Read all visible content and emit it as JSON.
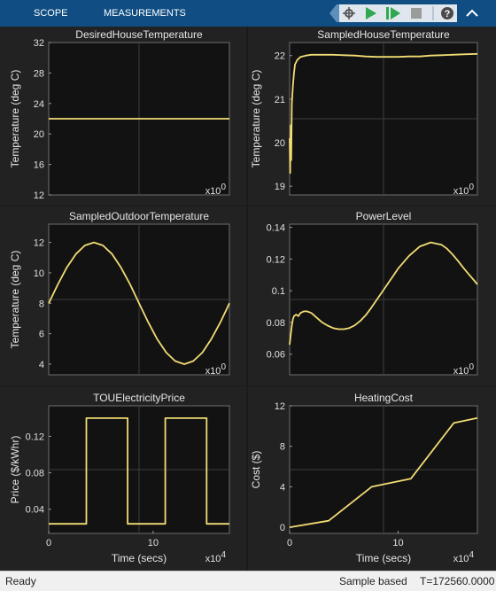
{
  "toolbar": {
    "tabs": [
      {
        "label": "SCOPE"
      },
      {
        "label": "MEASUREMENTS"
      }
    ],
    "icons": [
      "pin-icon",
      "settings-icon",
      "run-icon",
      "step-forward-icon",
      "stop-icon",
      "help-icon",
      "collapse-icon"
    ]
  },
  "status": {
    "ready": "Ready",
    "mode": "Sample based",
    "time": "T=172560.0000"
  },
  "chart_data": [
    {
      "type": "line",
      "title": "DesiredHouseTemperature",
      "ylabel": "Temperature (deg C)",
      "xlabel": "",
      "exponent_base": "x10",
      "exponent": "0",
      "ylim": [
        12,
        32
      ],
      "yticks": [
        12,
        16,
        20,
        24,
        28,
        32
      ],
      "xlim": [
        0,
        17.3
      ],
      "xticks": [],
      "grid": true,
      "color": "#f2dc74",
      "series": [
        {
          "x": [
            0,
            17.3
          ],
          "y": [
            22,
            22
          ]
        }
      ]
    },
    {
      "type": "line",
      "title": "SampledHouseTemperature",
      "ylabel": "Temperature (deg C)",
      "xlabel": "",
      "exponent_base": "x10",
      "exponent": "0",
      "ylim": [
        18.8,
        22.3
      ],
      "yticks": [
        19,
        20,
        21,
        22
      ],
      "xlim": [
        0,
        17.3
      ],
      "xticks": [],
      "grid": true,
      "color": "#f2dc74",
      "series": [
        {
          "x": [
            0,
            0.05,
            0.1,
            0.15,
            0.2,
            0.3,
            0.4,
            0.5,
            0.7,
            1,
            1.5,
            2,
            3,
            4,
            5,
            6,
            7,
            8,
            9,
            10,
            11,
            12,
            13,
            14,
            15,
            16,
            17.3
          ],
          "y": [
            20.1,
            19.3,
            20.4,
            19.6,
            20.9,
            21.3,
            21.6,
            21.8,
            21.9,
            21.97,
            22.0,
            22.02,
            22.02,
            22.02,
            22.01,
            22.0,
            21.98,
            21.97,
            21.97,
            21.97,
            21.98,
            21.98,
            22.0,
            22.01,
            22.02,
            22.03,
            22.04
          ]
        }
      ]
    },
    {
      "type": "line",
      "title": "SampledOutdoorTemperature",
      "ylabel": "Temperature (deg C)",
      "xlabel": "",
      "exponent_base": "x10",
      "exponent": "0",
      "ylim": [
        3.3,
        13.2
      ],
      "yticks": [
        4,
        6,
        8,
        10,
        12
      ],
      "xlim": [
        0,
        17.3
      ],
      "xticks": [],
      "grid": true,
      "color": "#f2dc74",
      "series": [
        {
          "x": [
            0,
            0.87,
            1.73,
            2.6,
            3.46,
            4.33,
            5.19,
            6.06,
            6.92,
            7.79,
            8.65,
            9.52,
            10.38,
            11.25,
            12.11,
            12.98,
            13.84,
            14.71,
            15.57,
            16.44,
            17.3
          ],
          "y": [
            8,
            9.24,
            10.35,
            11.24,
            11.8,
            12,
            11.8,
            11.24,
            10.35,
            9.24,
            8,
            6.76,
            5.65,
            4.76,
            4.2,
            4,
            4.2,
            4.76,
            5.65,
            6.76,
            8
          ]
        }
      ]
    },
    {
      "type": "line",
      "title": "PowerLevel",
      "ylabel": "",
      "xlabel": "",
      "exponent_base": "x10",
      "exponent": "0",
      "ylim": [
        0.047,
        0.142
      ],
      "yticks": [
        0.06,
        0.08,
        0.1,
        0.12,
        0.14
      ],
      "xlim": [
        0,
        17.3
      ],
      "xticks": [],
      "grid": true,
      "color": "#f2dc74",
      "series": [
        {
          "x": [
            0,
            0.1,
            0.2,
            0.3,
            0.4,
            0.6,
            0.8,
            1,
            1.3,
            1.6,
            2,
            2.5,
            3,
            3.5,
            4,
            4.5,
            5,
            5.5,
            6,
            6.5,
            7,
            7.5,
            8,
            8.5,
            9,
            9.5,
            10,
            11,
            12,
            13,
            14,
            14.5,
            15,
            15.5,
            16,
            16.5,
            17,
            17.3
          ],
          "y": [
            0.066,
            0.072,
            0.078,
            0.082,
            0.084,
            0.085,
            0.084,
            0.086,
            0.087,
            0.087,
            0.086,
            0.083,
            0.08,
            0.078,
            0.0765,
            0.0758,
            0.0758,
            0.0765,
            0.0782,
            0.081,
            0.0845,
            0.089,
            0.094,
            0.099,
            0.104,
            0.109,
            0.114,
            0.122,
            0.128,
            0.1305,
            0.129,
            0.1265,
            0.123,
            0.119,
            0.1145,
            0.1105,
            0.1065,
            0.104
          ]
        }
      ]
    },
    {
      "type": "line",
      "title": "TOUElectricityPrice",
      "ylabel": "Price ($/kWhr)",
      "xlabel": "Time (secs)",
      "exponent_base": "x10",
      "exponent": "4",
      "ylim": [
        0.0135,
        0.1535
      ],
      "yticks": [
        0.04,
        0.08,
        0.12
      ],
      "xlim": [
        0,
        17.3
      ],
      "xticks": [
        0,
        10
      ],
      "grid": true,
      "color": "#f2dc74",
      "series": [
        {
          "x": [
            0,
            3.6,
            3.6,
            7.56,
            7.56,
            11.16,
            11.16,
            15.12,
            15.12,
            17.3
          ],
          "y": [
            0.024,
            0.024,
            0.14,
            0.14,
            0.024,
            0.024,
            0.14,
            0.14,
            0.024,
            0.024
          ]
        }
      ]
    },
    {
      "type": "line",
      "title": "HeatingCost",
      "ylabel": "Cost ($)",
      "xlabel": "Time (secs)",
      "exponent_base": "x10",
      "exponent": "4",
      "ylim": [
        -0.6,
        12
      ],
      "yticks": [
        0,
        4,
        8,
        12
      ],
      "xlim": [
        0,
        17.3
      ],
      "xticks": [
        0,
        10
      ],
      "grid": true,
      "color": "#f2dc74",
      "series": [
        {
          "x": [
            0,
            3.6,
            7.56,
            11.16,
            15.12,
            17.3
          ],
          "y": [
            0,
            0.65,
            4.0,
            4.8,
            10.3,
            10.8
          ]
        }
      ]
    }
  ]
}
